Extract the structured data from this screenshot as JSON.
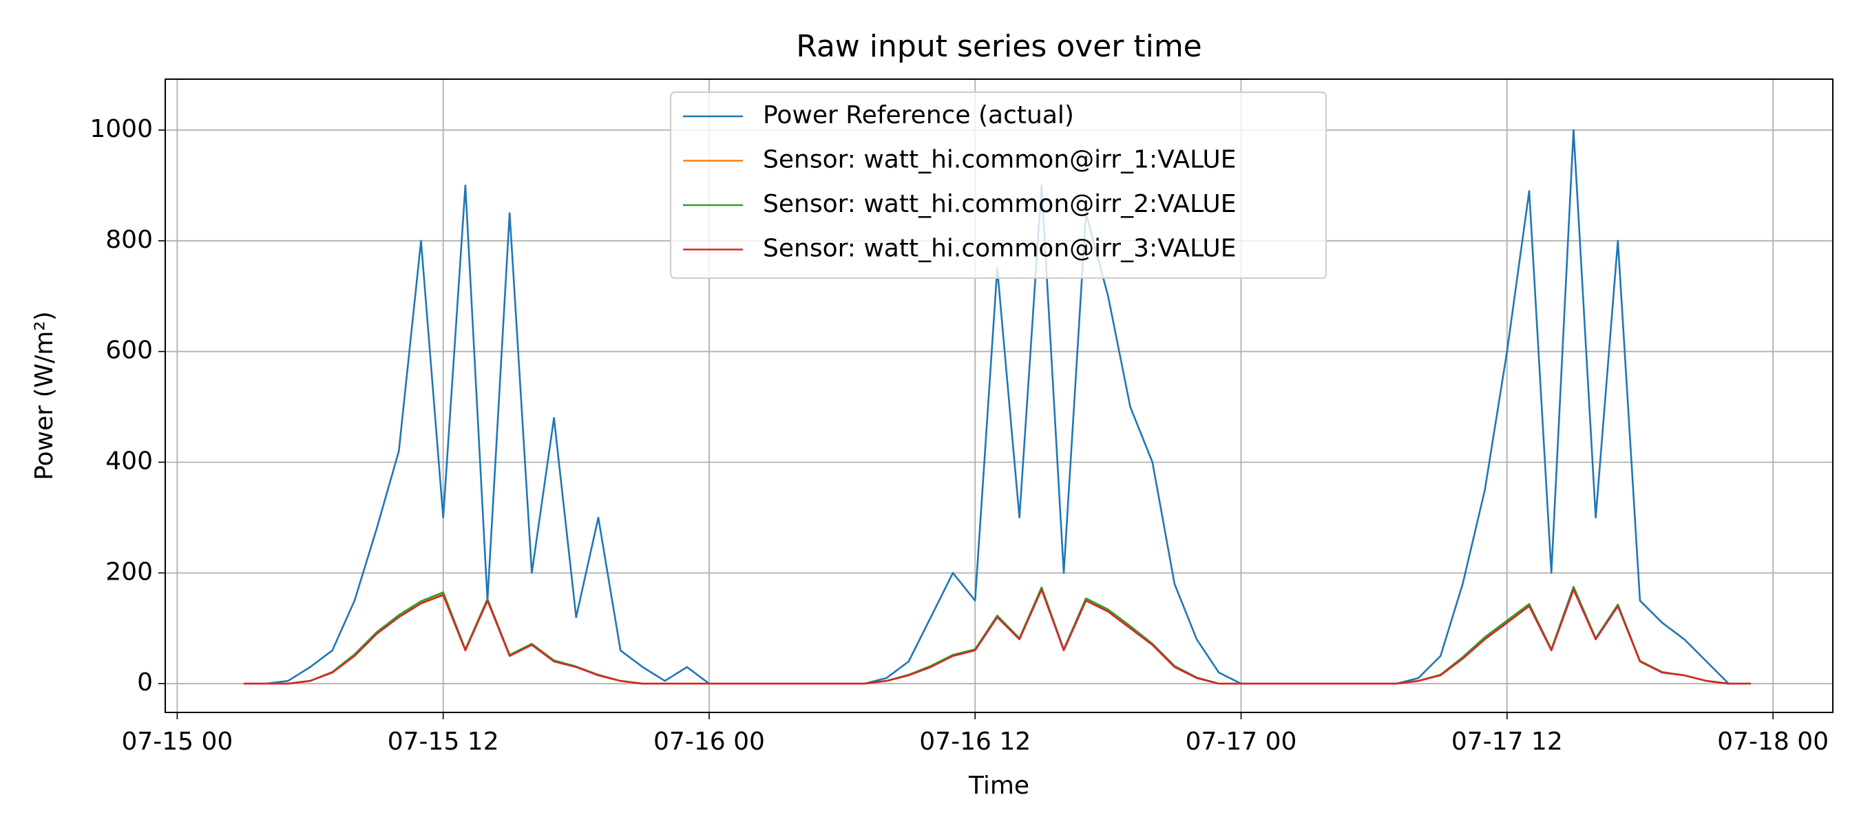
{
  "chart_data": {
    "type": "line",
    "title": "Raw input series over time",
    "x_label": "Time",
    "y_label": "Power (W/m²)",
    "x": [
      3,
      4,
      5,
      6,
      7,
      8,
      9,
      10,
      11,
      12,
      13,
      14,
      15,
      16,
      17,
      18,
      19,
      20,
      21,
      22,
      23,
      24,
      25,
      26,
      27,
      28,
      29,
      30,
      31,
      32,
      33,
      34,
      35,
      36,
      37,
      38,
      39,
      40,
      41,
      42,
      43,
      44,
      45,
      46,
      47,
      48,
      49,
      50,
      51,
      52,
      53,
      54,
      55,
      56,
      57,
      58,
      59,
      60,
      61,
      62,
      63,
      64,
      65,
      66,
      67,
      68,
      69,
      70,
      71
    ],
    "series": [
      {
        "name": "Power Reference (actual)",
        "color": "#1f77b4",
        "values": [
          0,
          0,
          5,
          30,
          60,
          150,
          280,
          420,
          800,
          300,
          900,
          150,
          850,
          200,
          480,
          120,
          300,
          60,
          30,
          5,
          30,
          0,
          0,
          0,
          0,
          0,
          0,
          0,
          0,
          10,
          40,
          120,
          200,
          150,
          750,
          300,
          900,
          200,
          850,
          700,
          500,
          400,
          180,
          80,
          20,
          0,
          0,
          0,
          0,
          0,
          0,
          0,
          0,
          10,
          50,
          180,
          350,
          600,
          890,
          200,
          1000,
          300,
          800,
          150,
          110,
          80,
          40,
          0,
          0
        ]
      },
      {
        "name": "Sensor: watt_hi.common@irr_1:VALUE",
        "color": "#ff7f0e",
        "values": [
          0,
          0,
          0,
          5,
          21,
          52,
          92,
          123,
          148,
          163,
          61,
          152,
          51,
          71,
          41,
          31,
          15,
          5,
          0,
          0,
          0,
          0,
          0,
          0,
          0,
          0,
          0,
          0,
          0,
          5,
          15,
          31,
          51,
          61,
          122,
          81,
          172,
          61,
          152,
          132,
          102,
          71,
          31,
          10,
          0,
          0,
          0,
          0,
          0,
          0,
          0,
          0,
          0,
          5,
          16,
          47,
          83,
          113,
          143,
          61,
          173,
          81,
          142,
          40,
          20,
          15,
          5,
          0,
          0
        ]
      },
      {
        "name": "Sensor: watt_hi.common@irr_2:VALUE",
        "color": "#2ca02c",
        "values": [
          0,
          0,
          0,
          5,
          21,
          53,
          93,
          124,
          149,
          165,
          62,
          153,
          52,
          72,
          42,
          31,
          16,
          5,
          0,
          0,
          0,
          0,
          0,
          0,
          0,
          0,
          0,
          0,
          0,
          5,
          16,
          32,
          52,
          62,
          123,
          82,
          174,
          62,
          154,
          134,
          104,
          72,
          32,
          11,
          0,
          0,
          0,
          0,
          0,
          0,
          0,
          0,
          0,
          5,
          16,
          48,
          84,
          114,
          144,
          62,
          175,
          82,
          143,
          41,
          21,
          15,
          5,
          0,
          0
        ]
      },
      {
        "name": "Sensor: watt_hi.common@irr_3:VALUE",
        "color": "#d62728",
        "values": [
          0,
          0,
          0,
          5,
          20,
          50,
          90,
          120,
          145,
          160,
          60,
          150,
          50,
          70,
          40,
          30,
          15,
          5,
          0,
          0,
          0,
          0,
          0,
          0,
          0,
          0,
          0,
          0,
          0,
          5,
          15,
          30,
          50,
          60,
          120,
          80,
          170,
          60,
          150,
          130,
          100,
          70,
          30,
          10,
          0,
          0,
          0,
          0,
          0,
          0,
          0,
          0,
          0,
          5,
          15,
          45,
          80,
          110,
          140,
          60,
          170,
          80,
          140,
          40,
          20,
          15,
          5,
          0,
          0
        ]
      }
    ],
    "xlim": [
      -0.54,
      74.7
    ],
    "xticks": [
      {
        "value": 0,
        "label": "07-15 00"
      },
      {
        "value": 12,
        "label": "07-15 12"
      },
      {
        "value": 24,
        "label": "07-16 00"
      },
      {
        "value": 36,
        "label": "07-16 12"
      },
      {
        "value": 48,
        "label": "07-17 00"
      },
      {
        "value": 60,
        "label": "07-17 12"
      },
      {
        "value": 72,
        "label": "07-18 00"
      }
    ],
    "ylim": [
      -52,
      1092
    ],
    "yticks": [
      0,
      200,
      400,
      600,
      800,
      1000
    ],
    "grid": true,
    "legend": "upper center"
  }
}
